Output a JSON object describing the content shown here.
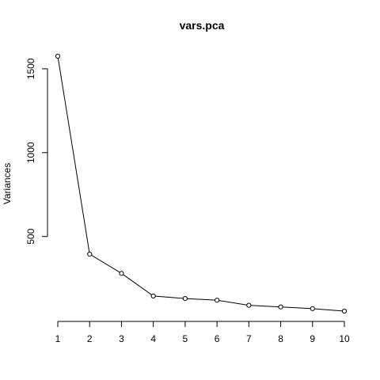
{
  "chart_data": {
    "type": "line",
    "title": "vars.pca",
    "xlabel": "",
    "ylabel": "Variances",
    "x": [
      1,
      2,
      3,
      4,
      5,
      6,
      7,
      8,
      9,
      10
    ],
    "series": [
      {
        "values": [
          1575,
          395,
          280,
          145,
          130,
          120,
          90,
          80,
          70,
          55
        ]
      }
    ],
    "x_ticks": [
      "1",
      "2",
      "3",
      "4",
      "5",
      "6",
      "7",
      "8",
      "9",
      "10"
    ],
    "y_ticks": [
      500,
      1000,
      1500
    ],
    "y_tick_labels": [
      "500",
      "1000",
      "1500"
    ],
    "xlim": [
      1,
      10
    ],
    "ylim": [
      55,
      1575
    ],
    "grid": false,
    "legend": "none",
    "marker": "open-circle",
    "line_color": "#000000"
  }
}
